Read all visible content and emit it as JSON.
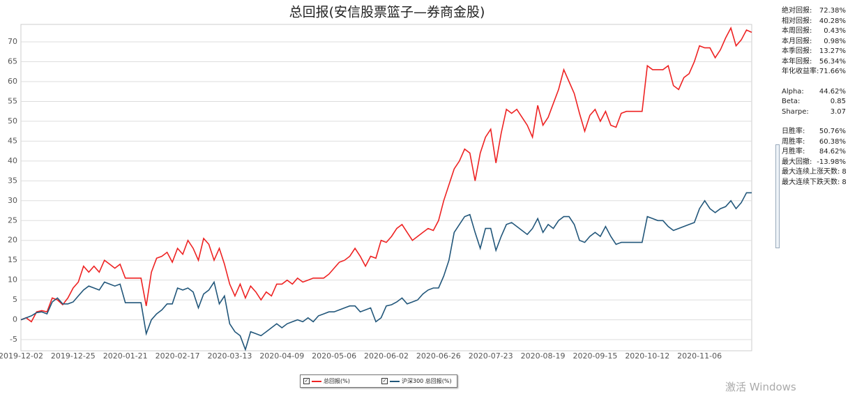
{
  "chart_data": {
    "type": "line",
    "title": "总回报(安信股票篮子—券商金股)",
    "categories": [
      "2019-12-02",
      null,
      null,
      null,
      null,
      null,
      null,
      null,
      null,
      null,
      "2019-12-25",
      null,
      null,
      null,
      null,
      null,
      null,
      null,
      null,
      null,
      "2020-01-21",
      null,
      null,
      null,
      null,
      null,
      null,
      null,
      null,
      null,
      "2020-02-17",
      null,
      null,
      null,
      null,
      null,
      null,
      null,
      null,
      null,
      "2020-03-13",
      null,
      null,
      null,
      null,
      null,
      null,
      null,
      null,
      null,
      "2020-04-09",
      null,
      null,
      null,
      null,
      null,
      null,
      null,
      null,
      null,
      "2020-05-06",
      null,
      null,
      null,
      null,
      null,
      null,
      null,
      null,
      null,
      "2020-06-02",
      null,
      null,
      null,
      null,
      null,
      null,
      null,
      null,
      null,
      "2020-06-26",
      null,
      null,
      null,
      null,
      null,
      null,
      null,
      null,
      null,
      "2020-07-23",
      null,
      null,
      null,
      null,
      null,
      null,
      null,
      null,
      null,
      "2020-08-19",
      null,
      null,
      null,
      null,
      null,
      null,
      null,
      null,
      null,
      "2020-09-15",
      null,
      null,
      null,
      null,
      null,
      null,
      null,
      null,
      null,
      "2020-10-12",
      null,
      null,
      null,
      null,
      null,
      null,
      null,
      null,
      null,
      "2020-11-06",
      null,
      null,
      null,
      null,
      null,
      null,
      null,
      null,
      null,
      null
    ],
    "series": [
      {
        "name": "总回报(%)",
        "color": "#ee2222",
        "values": [
          0,
          0.5,
          -0.5,
          2,
          2.3,
          2,
          5.5,
          5,
          3.8,
          5.5,
          8,
          9.5,
          13.5,
          12,
          13.5,
          12,
          15,
          14,
          13,
          14,
          10.5,
          10.5,
          10.5,
          10.5,
          3.5,
          12,
          15.5,
          16,
          17,
          14.5,
          18,
          16.5,
          20,
          18,
          15,
          20.5,
          19,
          15,
          18,
          14,
          9,
          6,
          9,
          5.5,
          8.5,
          7,
          5,
          7,
          6,
          9,
          9,
          10,
          9,
          10.5,
          9.5,
          10,
          10.5,
          10.5,
          10.5,
          11.5,
          13,
          14.5,
          15,
          16,
          18,
          16,
          13.5,
          16,
          15.5,
          20,
          19.5,
          21,
          23,
          24,
          22,
          20,
          21,
          22,
          23,
          22.5,
          25,
          30,
          34,
          38,
          40,
          43,
          42,
          35,
          42,
          46,
          48,
          39.5,
          47,
          53,
          52,
          53,
          51,
          49,
          46,
          54,
          49,
          51,
          54.5,
          58,
          63,
          60,
          57,
          52,
          47.5,
          51.5,
          53,
          50,
          52.5,
          49,
          48.5,
          52,
          52.5,
          52.5,
          52.5,
          52.5,
          64,
          63,
          63,
          63,
          64,
          59,
          58,
          61,
          62,
          65,
          69,
          68.5,
          68.5,
          66,
          68,
          71,
          73.5,
          69,
          70.5,
          73,
          72.4
        ]
      },
      {
        "name": "沪深300 总回报(%)",
        "color": "#21567a",
        "values": [
          0,
          0.5,
          1,
          1.8,
          2,
          1.5,
          4.5,
          5.5,
          4,
          4,
          4.5,
          6,
          7.5,
          8.5,
          8,
          7.5,
          9.5,
          9,
          8.5,
          9,
          4.3,
          4.3,
          4.3,
          4.3,
          -3.5,
          0,
          1.5,
          2.5,
          4,
          4,
          8,
          7.5,
          8,
          7,
          3,
          6.5,
          7.5,
          9.5,
          4,
          6,
          -1,
          -3,
          -4,
          -7.5,
          -3,
          -3.5,
          -4,
          -3,
          -2,
          -1,
          -2,
          -1,
          -0.5,
          0,
          -0.5,
          0.5,
          -0.5,
          1,
          1.5,
          2,
          2,
          2.5,
          3,
          3.5,
          3.5,
          2,
          2.5,
          3,
          -0.5,
          0.5,
          3.5,
          3.8,
          4.5,
          5.5,
          4,
          4.5,
          5,
          6.5,
          7.5,
          8,
          8,
          11,
          15,
          22,
          24,
          26,
          26.5,
          22,
          18,
          23,
          23,
          17.5,
          21,
          24,
          24.5,
          23.5,
          22.5,
          21.5,
          23,
          25.5,
          22,
          24,
          23,
          25,
          26,
          26,
          24,
          20,
          19.5,
          21,
          22,
          21,
          23.5,
          21,
          19,
          19.5,
          19.5,
          19.5,
          19.5,
          19.5,
          26,
          25.5,
          25,
          25,
          23.5,
          22.5,
          23,
          23.5,
          24,
          24.5,
          28,
          30,
          28,
          27,
          28,
          28.5,
          30,
          28,
          29.5,
          32,
          32
        ]
      }
    ],
    "ylim": [
      -7.8,
      74.4
    ],
    "yticks": [
      -5,
      0,
      5,
      10,
      15,
      20,
      25,
      30,
      35,
      40,
      45,
      50,
      55,
      60,
      65,
      70
    ],
    "grid": true
  },
  "stats": [
    [
      {
        "label": "绝对回报:",
        "value": "72.38%"
      },
      {
        "label": "相对回报:",
        "value": "40.28%"
      },
      {
        "label": "本周回报:",
        "value": "0.43%"
      },
      {
        "label": "本月回报:",
        "value": "0.98%"
      },
      {
        "label": "本季回报:",
        "value": "13.27%"
      },
      {
        "label": "本年回报:",
        "value": "56.34%"
      },
      {
        "label": "年化收益率:",
        "value": "71.66%"
      }
    ],
    [
      {
        "label": "Alpha:",
        "value": "44.62%"
      },
      {
        "label": "Beta:",
        "value": "0.85"
      },
      {
        "label": "Sharpe:",
        "value": "3.07"
      }
    ],
    [
      {
        "label": "日胜率:",
        "value": "50.76%"
      },
      {
        "label": "周胜率:",
        "value": "60.38%"
      },
      {
        "label": "月胜率:",
        "value": "84.62%"
      },
      {
        "label": "最大回撤:",
        "value": "-13.98%"
      },
      {
        "label": "最大连续上涨天数:",
        "value": 8
      },
      {
        "label": "最大连续下跌天数:",
        "value": 8
      }
    ]
  ],
  "watermark": "激活 Windows"
}
